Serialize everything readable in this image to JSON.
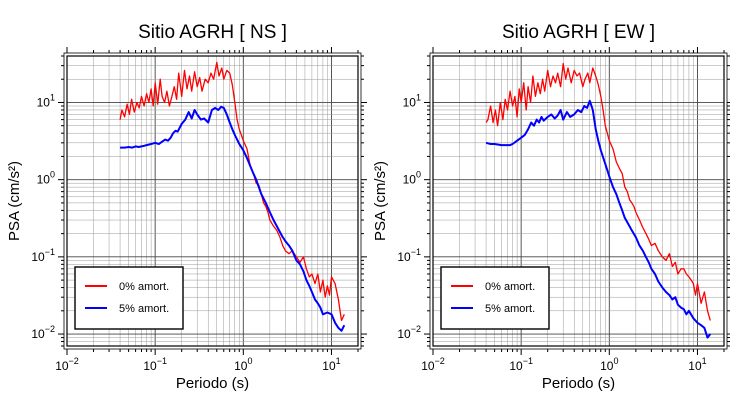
{
  "chart_data": [
    {
      "type": "line",
      "title": "Sitio AGRH [ NS ]",
      "xlabel": "Periodo (s)",
      "ylabel": "PSA (cm/s²)",
      "xscale": "log",
      "yscale": "log",
      "xlim": [
        0.01,
        20
      ],
      "ylim": [
        0.007,
        40
      ],
      "xticks": [
        {
          "base": "10",
          "exp": "−2"
        },
        {
          "base": "10",
          "exp": "−1"
        },
        {
          "base": "10",
          "exp": "0"
        },
        {
          "base": "10",
          "exp": "1"
        }
      ],
      "yticks": [
        {
          "base": "10",
          "exp": "−2"
        },
        {
          "base": "10",
          "exp": "−1"
        },
        {
          "base": "10",
          "exp": "0"
        },
        {
          "base": "10",
          "exp": "1"
        }
      ],
      "grid": true,
      "legend_position": "bottom-left",
      "series": [
        {
          "name": "0% amort.",
          "color": "#ff0000",
          "x": [
            0.04,
            0.042,
            0.045,
            0.048,
            0.051,
            0.054,
            0.058,
            0.062,
            0.066,
            0.07,
            0.075,
            0.08,
            0.085,
            0.09,
            0.095,
            0.1,
            0.107,
            0.114,
            0.12,
            0.128,
            0.136,
            0.145,
            0.155,
            0.165,
            0.175,
            0.185,
            0.2,
            0.215,
            0.23,
            0.245,
            0.26,
            0.28,
            0.3,
            0.32,
            0.34,
            0.37,
            0.4,
            0.43,
            0.46,
            0.5,
            0.53,
            0.57,
            0.6,
            0.65,
            0.7,
            0.75,
            0.8,
            0.85,
            0.9,
            1.0,
            1.1,
            1.2,
            1.3,
            1.4,
            1.5,
            1.6,
            1.7,
            1.8,
            1.9,
            2.0,
            2.2,
            2.4,
            2.6,
            2.8,
            3.0,
            3.3,
            3.6,
            4.0,
            4.4,
            4.8,
            5.2,
            5.6,
            6.0,
            6.5,
            7.0,
            7.5,
            8.0,
            8.5,
            9.0,
            9.5,
            10.0,
            11.0,
            12.0,
            13.0,
            14.0
          ],
          "y": [
            6.0,
            8.0,
            6.5,
            9.5,
            7.0,
            11.0,
            7.5,
            10.0,
            8.5,
            12.0,
            9.0,
            13.0,
            10.0,
            15.0,
            9.0,
            18.0,
            9.5,
            20.0,
            12.0,
            10.0,
            14.0,
            9.0,
            12.0,
            16.0,
            11.0,
            24.0,
            12.0,
            26.0,
            15.0,
            22.0,
            14.0,
            25.0,
            16.0,
            21.0,
            14.0,
            20.0,
            18.0,
            24.0,
            20.0,
            33.0,
            22.0,
            28.0,
            20.0,
            26.0,
            24.0,
            17.0,
            10.0,
            6.0,
            4.5,
            3.2,
            2.5,
            1.5,
            1.2,
            0.9,
            0.85,
            0.65,
            0.5,
            0.45,
            0.38,
            0.3,
            0.25,
            0.22,
            0.18,
            0.14,
            0.12,
            0.11,
            0.12,
            0.1,
            0.085,
            0.1,
            0.07,
            0.055,
            0.06,
            0.045,
            0.06,
            0.035,
            0.05,
            0.03,
            0.042,
            0.032,
            0.055,
            0.045,
            0.028,
            0.015,
            0.018
          ]
        },
        {
          "name": "5% amort.",
          "color": "#0000ff",
          "x": [
            0.04,
            0.045,
            0.05,
            0.055,
            0.06,
            0.065,
            0.07,
            0.075,
            0.08,
            0.09,
            0.1,
            0.11,
            0.12,
            0.13,
            0.14,
            0.15,
            0.16,
            0.17,
            0.18,
            0.2,
            0.22,
            0.24,
            0.26,
            0.28,
            0.3,
            0.33,
            0.36,
            0.4,
            0.44,
            0.48,
            0.52,
            0.56,
            0.6,
            0.65,
            0.7,
            0.75,
            0.8,
            0.9,
            1.0,
            1.1,
            1.2,
            1.3,
            1.4,
            1.5,
            1.6,
            1.8,
            2.0,
            2.2,
            2.4,
            2.6,
            2.8,
            3.0,
            3.3,
            3.6,
            4.0,
            4.4,
            4.8,
            5.2,
            5.6,
            6.0,
            6.5,
            7.0,
            7.5,
            8.0,
            9.0,
            10.0,
            11.0,
            12.0,
            13.0,
            14.0
          ],
          "y": [
            2.6,
            2.6,
            2.65,
            2.6,
            2.7,
            2.65,
            2.7,
            2.75,
            2.8,
            2.9,
            3.0,
            2.9,
            3.1,
            3.3,
            3.2,
            3.5,
            4.0,
            4.3,
            4.2,
            5.3,
            6.0,
            7.5,
            6.2,
            8.0,
            7.0,
            6.0,
            6.2,
            5.5,
            8.0,
            8.5,
            8.0,
            8.8,
            8.5,
            7.0,
            5.5,
            4.5,
            3.8,
            2.9,
            2.4,
            1.9,
            1.5,
            1.2,
            1.0,
            0.8,
            0.65,
            0.5,
            0.38,
            0.3,
            0.25,
            0.21,
            0.18,
            0.16,
            0.14,
            0.12,
            0.09,
            0.08,
            0.065,
            0.05,
            0.042,
            0.035,
            0.028,
            0.025,
            0.022,
            0.018,
            0.019,
            0.018,
            0.014,
            0.012,
            0.011,
            0.013
          ]
        }
      ]
    },
    {
      "type": "line",
      "title": "Sitio AGRH [ EW ]",
      "xlabel": "Periodo (s)",
      "ylabel": "PSA (cm/s²)",
      "xscale": "log",
      "yscale": "log",
      "xlim": [
        0.01,
        20
      ],
      "ylim": [
        0.007,
        40
      ],
      "xticks": [
        {
          "base": "10",
          "exp": "−2"
        },
        {
          "base": "10",
          "exp": "−1"
        },
        {
          "base": "10",
          "exp": "0"
        },
        {
          "base": "10",
          "exp": "1"
        }
      ],
      "yticks": [
        {
          "base": "10",
          "exp": "−2"
        },
        {
          "base": "10",
          "exp": "−1"
        },
        {
          "base": "10",
          "exp": "0"
        },
        {
          "base": "10",
          "exp": "1"
        }
      ],
      "grid": true,
      "legend_position": "bottom-left",
      "series": [
        {
          "name": "0% amort.",
          "color": "#ff0000",
          "x": [
            0.04,
            0.042,
            0.045,
            0.048,
            0.051,
            0.054,
            0.058,
            0.062,
            0.066,
            0.07,
            0.075,
            0.08,
            0.085,
            0.09,
            0.095,
            0.1,
            0.107,
            0.114,
            0.12,
            0.128,
            0.136,
            0.145,
            0.155,
            0.165,
            0.175,
            0.185,
            0.2,
            0.215,
            0.23,
            0.245,
            0.26,
            0.28,
            0.3,
            0.32,
            0.34,
            0.37,
            0.4,
            0.43,
            0.46,
            0.5,
            0.53,
            0.57,
            0.6,
            0.65,
            0.7,
            0.75,
            0.8,
            0.85,
            0.9,
            1.0,
            1.1,
            1.2,
            1.3,
            1.4,
            1.5,
            1.6,
            1.7,
            1.8,
            1.9,
            2.0,
            2.2,
            2.4,
            2.6,
            2.8,
            3.0,
            3.3,
            3.6,
            4.0,
            4.4,
            4.8,
            5.2,
            5.6,
            6.0,
            6.5,
            7.0,
            7.5,
            8.0,
            8.5,
            9.0,
            9.5,
            10.0,
            11.0,
            12.0,
            13.0,
            14.0
          ],
          "y": [
            5.5,
            6.0,
            9.0,
            5.5,
            8.0,
            5.0,
            10.0,
            6.0,
            11.0,
            8.0,
            14.0,
            9.0,
            12.0,
            6.5,
            15.0,
            10.0,
            18.0,
            8.0,
            16.0,
            10.0,
            22.0,
            12.0,
            18.0,
            13.0,
            20.0,
            14.0,
            26.0,
            16.0,
            22.0,
            18.0,
            24.0,
            16.0,
            32.0,
            20.0,
            28.0,
            18.0,
            26.0,
            22.0,
            24.0,
            16.0,
            20.0,
            24.0,
            18.0,
            28.0,
            22.0,
            17.0,
            12.0,
            8.0,
            5.0,
            3.2,
            2.5,
            1.7,
            1.4,
            1.2,
            0.8,
            0.7,
            0.55,
            0.5,
            0.45,
            0.38,
            0.3,
            0.24,
            0.2,
            0.17,
            0.14,
            0.15,
            0.12,
            0.1,
            0.09,
            0.11,
            0.075,
            0.085,
            0.06,
            0.07,
            0.07,
            0.06,
            0.055,
            0.05,
            0.045,
            0.032,
            0.045,
            0.025,
            0.035,
            0.02,
            0.015
          ]
        },
        {
          "name": "5% amort.",
          "color": "#0000ff",
          "x": [
            0.04,
            0.045,
            0.05,
            0.055,
            0.06,
            0.065,
            0.07,
            0.075,
            0.08,
            0.09,
            0.1,
            0.11,
            0.12,
            0.13,
            0.14,
            0.15,
            0.16,
            0.17,
            0.18,
            0.2,
            0.22,
            0.24,
            0.26,
            0.28,
            0.3,
            0.33,
            0.36,
            0.4,
            0.44,
            0.48,
            0.52,
            0.56,
            0.6,
            0.65,
            0.7,
            0.75,
            0.8,
            0.9,
            1.0,
            1.1,
            1.2,
            1.3,
            1.4,
            1.5,
            1.6,
            1.8,
            2.0,
            2.2,
            2.4,
            2.6,
            2.8,
            3.0,
            3.3,
            3.6,
            4.0,
            4.4,
            4.8,
            5.2,
            5.6,
            6.0,
            6.5,
            7.0,
            7.5,
            8.0,
            9.0,
            10.0,
            11.0,
            12.0,
            13.0,
            14.0
          ],
          "y": [
            3.0,
            2.9,
            2.9,
            2.85,
            2.8,
            2.8,
            2.8,
            2.8,
            2.9,
            3.2,
            3.5,
            3.8,
            4.5,
            5.5,
            5.0,
            6.0,
            5.5,
            6.5,
            5.8,
            6.5,
            7.0,
            6.2,
            6.8,
            8.0,
            6.0,
            7.5,
            6.5,
            7.0,
            8.0,
            7.5,
            9.0,
            8.5,
            10.5,
            8.0,
            4.5,
            3.2,
            2.4,
            1.6,
            1.1,
            0.8,
            0.65,
            0.5,
            0.4,
            0.32,
            0.28,
            0.22,
            0.18,
            0.14,
            0.12,
            0.1,
            0.085,
            0.07,
            0.06,
            0.048,
            0.04,
            0.035,
            0.032,
            0.028,
            0.03,
            0.024,
            0.022,
            0.021,
            0.018,
            0.02,
            0.016,
            0.014,
            0.013,
            0.012,
            0.009,
            0.01
          ]
        }
      ]
    }
  ]
}
